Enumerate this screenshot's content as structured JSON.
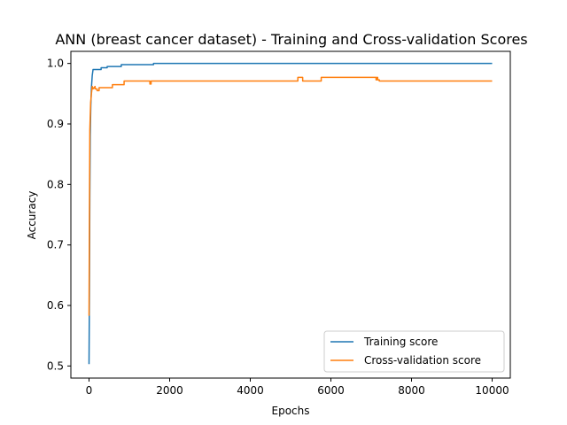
{
  "chart_data": {
    "type": "line",
    "title": "ANN (breast cancer dataset) - Training and Cross-validation Scores",
    "xlabel": "Epochs",
    "ylabel": "Accuracy",
    "xlim": [
      -450,
      10450
    ],
    "ylim": [
      0.48,
      1.02
    ],
    "xticks": [
      0,
      2000,
      4000,
      6000,
      8000,
      10000
    ],
    "yticks": [
      0.5,
      0.6,
      0.7,
      0.8,
      0.9,
      1.0
    ],
    "ytick_labels": [
      "0.5",
      "0.6",
      "0.7",
      "0.8",
      "0.9",
      "1.0"
    ],
    "grid": false,
    "legend_position": "lower-right",
    "series": [
      {
        "name": "Training score",
        "color": "#1f77b4",
        "points": [
          [
            0,
            0.503
          ],
          [
            10,
            0.62
          ],
          [
            20,
            0.78
          ],
          [
            30,
            0.88
          ],
          [
            45,
            0.93
          ],
          [
            60,
            0.96
          ],
          [
            80,
            0.98
          ],
          [
            100,
            0.99
          ],
          [
            300,
            0.99
          ],
          [
            300,
            0.993
          ],
          [
            450,
            0.993
          ],
          [
            450,
            0.995
          ],
          [
            800,
            0.995
          ],
          [
            800,
            0.998
          ],
          [
            1600,
            0.998
          ],
          [
            1600,
            1.0
          ],
          [
            10000,
            1.0
          ]
        ]
      },
      {
        "name": "Cross-validation score",
        "color": "#ff7f0e",
        "points": [
          [
            0,
            0.583
          ],
          [
            10,
            0.75
          ],
          [
            20,
            0.89
          ],
          [
            40,
            0.935
          ],
          [
            60,
            0.95
          ],
          [
            80,
            0.962
          ],
          [
            100,
            0.958
          ],
          [
            150,
            0.962
          ],
          [
            150,
            0.958
          ],
          [
            200,
            0.958
          ],
          [
            200,
            0.955
          ],
          [
            250,
            0.955
          ],
          [
            250,
            0.96
          ],
          [
            580,
            0.96
          ],
          [
            580,
            0.965
          ],
          [
            870,
            0.965
          ],
          [
            870,
            0.971
          ],
          [
            1510,
            0.971
          ],
          [
            1510,
            0.966
          ],
          [
            1540,
            0.966
          ],
          [
            1540,
            0.971
          ],
          [
            5180,
            0.971
          ],
          [
            5180,
            0.977
          ],
          [
            5300,
            0.977
          ],
          [
            5300,
            0.971
          ],
          [
            5760,
            0.971
          ],
          [
            5760,
            0.977
          ],
          [
            7120,
            0.977
          ],
          [
            7120,
            0.973
          ],
          [
            7140,
            0.973
          ],
          [
            7140,
            0.977
          ],
          [
            7160,
            0.977
          ],
          [
            7160,
            0.973
          ],
          [
            7200,
            0.973
          ],
          [
            7200,
            0.971
          ],
          [
            10000,
            0.971
          ]
        ]
      }
    ]
  }
}
